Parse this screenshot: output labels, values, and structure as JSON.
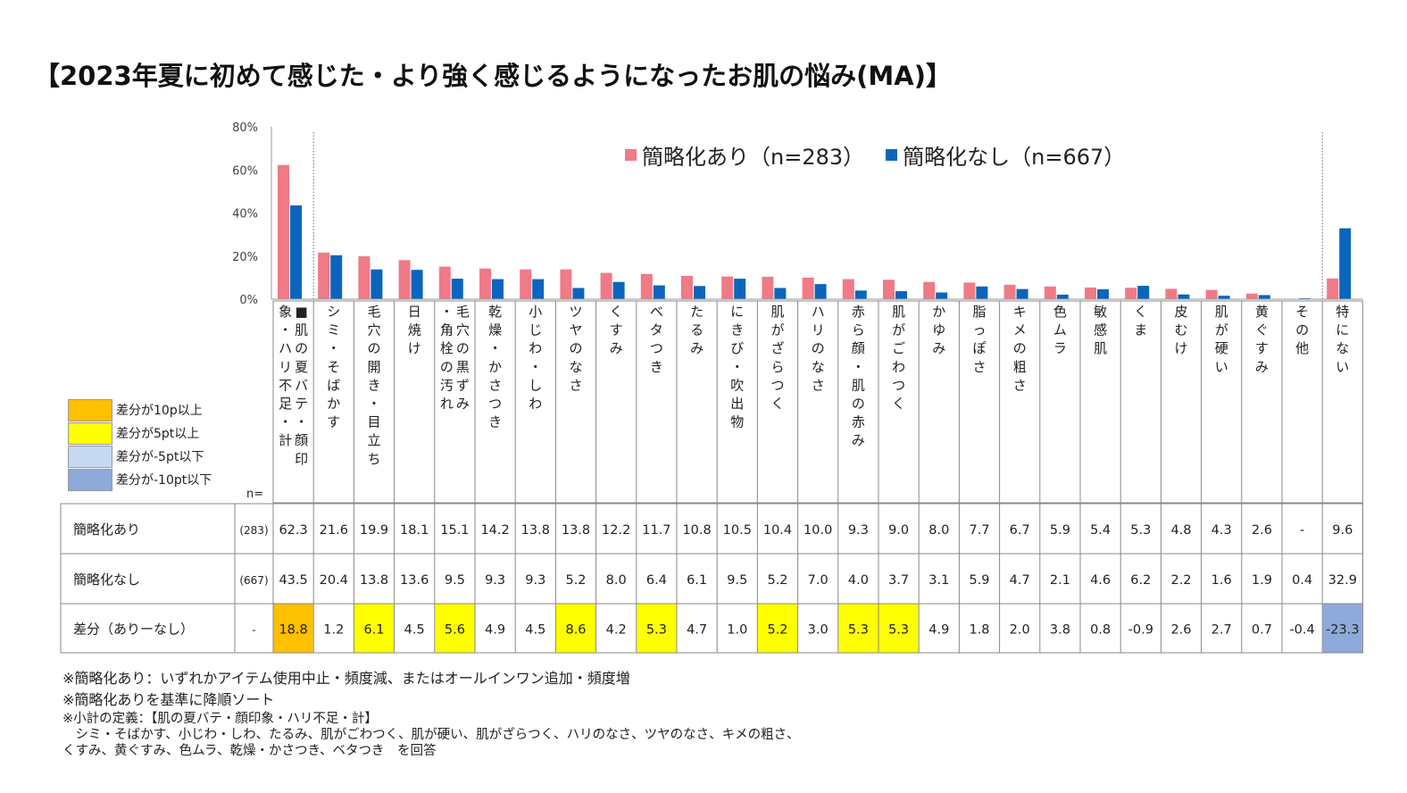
{
  "title": "【2023年夏に初めて感じた・より強く感じるようになったお肌の悩み(MA)】",
  "legend": {
    "series_a": "簡略化あり（n=283）",
    "series_b": "簡略化なし（n=667）"
  },
  "colors": {
    "series_a": "#f07a87",
    "series_b": "#0b65bd",
    "diff_10p": "#ffc000",
    "diff_5p": "#ffff00",
    "diff_m5": "#c5d9f1",
    "diff_m10": "#8eaadb"
  },
  "key": {
    "k1": "差分が10p以上",
    "k2": "差分が5pt以上",
    "k3": "差分が-5pt以下",
    "k4": "差分が-10pt以下"
  },
  "n_label": "n=",
  "table": {
    "row_labels": [
      "簡略化あり",
      "簡略化なし",
      "差分（ありーなし）"
    ],
    "n_values": [
      "(283)",
      "(667)",
      "-"
    ]
  },
  "notes": {
    "n1": "※簡略化あり：いずれかアイテム使用中止・頻度減、またはオールインワン追加・頻度増",
    "n2": "※簡略化ありを基準に降順ソート",
    "n3": "※小計の定義：【肌の夏バテ・顔印象・ハリ不足・計】",
    "n4": "　シミ・そばかす、小じわ・しわ、たるみ、肌がごわつく、肌が硬い、肌がざらつく、ハリのなさ、ツヤのなさ、キメの粗さ、",
    "n5": "くすみ、黄ぐすみ、色ムラ、乾燥・かさつき、ベタつき　を回答"
  },
  "chart_data": {
    "type": "bar",
    "ylim": [
      0,
      80
    ],
    "yticks": [
      "0%",
      "20%",
      "40%",
      "60%",
      "80%"
    ],
    "categories": [
      "■肌の夏バテ・顔印象・ハリ不足・計",
      "シミ・そばかす",
      "毛穴の開き・目立ち",
      "日焼け",
      "毛穴の黒ずみ・角栓の汚れ",
      "乾燥・かさつき",
      "小じわ・しわ",
      "ツヤのなさ",
      "くすみ",
      "ベタつき",
      "たるみ",
      "にきび・吹出物",
      "肌がざらつく",
      "ハリのなさ",
      "赤ら顔・肌の赤み",
      "肌がごわつく",
      "かゆみ",
      "脂っぽさ",
      "キメの粗さ",
      "色ムラ",
      "敏感肌",
      "くま",
      "皮むけ",
      "肌が硬い",
      "黄ぐすみ",
      "その他",
      "特にない"
    ],
    "series": [
      {
        "name": "簡略化あり",
        "values": [
          62.3,
          21.6,
          19.9,
          18.1,
          15.1,
          14.2,
          13.8,
          13.8,
          12.2,
          11.7,
          10.8,
          10.5,
          10.4,
          10.0,
          9.3,
          9.0,
          8.0,
          7.7,
          6.7,
          5.9,
          5.4,
          5.3,
          4.8,
          4.3,
          2.6,
          0,
          9.6
        ],
        "labels": [
          "62.3",
          "21.6",
          "19.9",
          "18.1",
          "15.1",
          "14.2",
          "13.8",
          "13.8",
          "12.2",
          "11.7",
          "10.8",
          "10.5",
          "10.4",
          "10.0",
          "9.3",
          "9.0",
          "8.0",
          "7.7",
          "6.7",
          "5.9",
          "5.4",
          "5.3",
          "4.8",
          "4.3",
          "2.6",
          "-",
          "9.6"
        ]
      },
      {
        "name": "簡略化なし",
        "values": [
          43.5,
          20.4,
          13.8,
          13.6,
          9.5,
          9.3,
          9.3,
          5.2,
          8.0,
          6.4,
          6.1,
          9.5,
          5.2,
          7.0,
          4.0,
          3.7,
          3.1,
          5.9,
          4.7,
          2.1,
          4.6,
          6.2,
          2.2,
          1.6,
          1.9,
          0.4,
          32.9
        ],
        "labels": [
          "43.5",
          "20.4",
          "13.8",
          "13.6",
          "9.5",
          "9.3",
          "9.3",
          "5.2",
          "8.0",
          "6.4",
          "6.1",
          "9.5",
          "5.2",
          "7.0",
          "4.0",
          "3.7",
          "3.1",
          "5.9",
          "4.7",
          "2.1",
          "4.6",
          "6.2",
          "2.2",
          "1.6",
          "1.9",
          "0.4",
          "32.9"
        ]
      }
    ],
    "diff": {
      "values": [
        18.8,
        1.2,
        6.1,
        4.5,
        5.6,
        4.9,
        4.5,
        8.6,
        4.2,
        5.3,
        4.7,
        1.0,
        5.2,
        3.0,
        5.3,
        5.3,
        4.9,
        1.8,
        2.0,
        3.8,
        0.8,
        -0.9,
        2.6,
        2.7,
        0.7,
        -0.4,
        -23.3
      ],
      "labels": [
        "18.8",
        "1.2",
        "6.1",
        "4.5",
        "5.6",
        "4.9",
        "4.5",
        "8.6",
        "4.2",
        "5.3",
        "4.7",
        "1.0",
        "5.2",
        "3.0",
        "5.3",
        "5.3",
        "4.9",
        "1.8",
        "2.0",
        "3.8",
        "0.8",
        "-0.9",
        "2.6",
        "2.7",
        "0.7",
        "-0.4",
        "-23.3"
      ]
    }
  }
}
